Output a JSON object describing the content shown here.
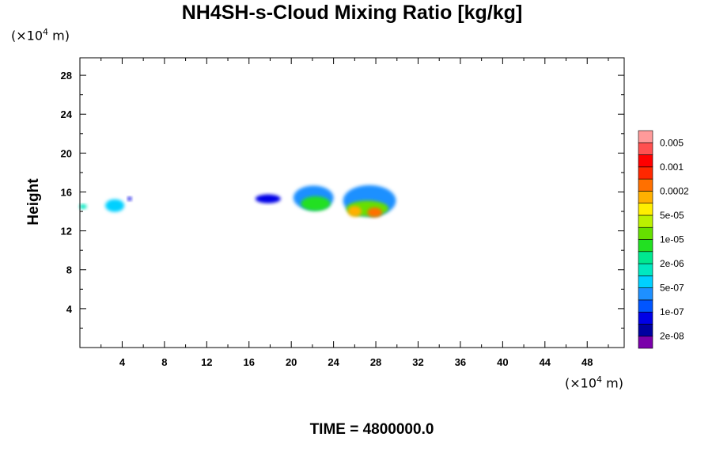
{
  "chart_data": {
    "type": "heatmap",
    "title": "NH4SH-s-Cloud Mixing Ratio [kg/kg]",
    "ylabel": "Height",
    "xlabel": "",
    "x_unit": {
      "prefix": "(×10",
      "exp": "4",
      "suffix": " m)"
    },
    "y_unit": {
      "prefix": "(×10",
      "exp": "4",
      "suffix": " m)"
    },
    "xlim": [
      0,
      51.5
    ],
    "ylim": [
      0,
      29.8
    ],
    "x_ticks": [
      4,
      8,
      12,
      16,
      20,
      24,
      28,
      32,
      36,
      40,
      44,
      48
    ],
    "y_ticks": [
      4,
      8,
      12,
      16,
      20,
      24,
      28
    ],
    "grid": false,
    "legend": {
      "placement": "right",
      "labels": [
        "2e-08",
        "1e-07",
        "5e-07",
        "2e-06",
        "1e-05",
        "5e-05",
        "0.0002",
        "0.001",
        "0.005"
      ],
      "colors": [
        "#7a00aa",
        "#0000a0",
        "#0000e6",
        "#0055ff",
        "#1e90ff",
        "#00d0ff",
        "#00e8c0",
        "#00e890",
        "#22e022",
        "#66e000",
        "#bbf000",
        "#ffee00",
        "#ffb000",
        "#ff7000",
        "#ff2800",
        "#ff0000",
        "#ff5050",
        "#ff9a9a"
      ]
    },
    "cells": [
      {
        "x": 0.3,
        "y": 14.5,
        "w": 0.7,
        "h": 0.5,
        "level": 6
      },
      {
        "x": 3.3,
        "y": 14.6,
        "w": 1.8,
        "h": 1.3,
        "level": 5
      },
      {
        "x": 4.7,
        "y": 15.3,
        "w": 0.4,
        "h": 0.4,
        "level": 2
      },
      {
        "x": 17.8,
        "y": 15.3,
        "w": 2.4,
        "h": 0.9,
        "level": 2
      },
      {
        "x": 22.1,
        "y": 15.4,
        "w": 3.8,
        "h": 2.5,
        "level": 4
      },
      {
        "x": 27.4,
        "y": 15.1,
        "w": 5.0,
        "h": 3.2,
        "level": 4
      },
      {
        "x": 22.3,
        "y": 14.8,
        "w": 2.8,
        "h": 1.5,
        "level": 8
      },
      {
        "x": 27.2,
        "y": 14.3,
        "w": 4.0,
        "h": 1.6,
        "level": 9
      },
      {
        "x": 26.0,
        "y": 14.0,
        "w": 1.3,
        "h": 1.1,
        "level": 12
      },
      {
        "x": 27.9,
        "y": 13.9,
        "w": 1.4,
        "h": 1.0,
        "level": 13
      }
    ]
  },
  "time_label": "TIME = 4800000.0"
}
